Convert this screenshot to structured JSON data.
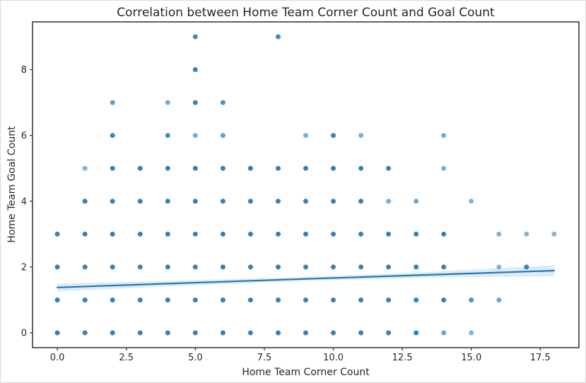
{
  "chart_data": {
    "type": "scatter",
    "title": "Correlation between Home Team Corner Count and Goal Count",
    "xlabel": "Home Team Corner Count",
    "ylabel": "Home Team Goal Count",
    "xlim": [
      -0.9,
      18.9
    ],
    "ylim": [
      -0.45,
      9.45
    ],
    "xtick_values": [
      0,
      2.5,
      5,
      7.5,
      10,
      12.5,
      15,
      17.5
    ],
    "xtick_labels": [
      "0.0",
      "2.5",
      "5.0",
      "7.5",
      "10.0",
      "12.5",
      "15.0",
      "17.5"
    ],
    "ytick_values": [
      0,
      2,
      4,
      6,
      8
    ],
    "ytick_labels": [
      "0",
      "2",
      "4",
      "6",
      "8"
    ],
    "grid": false,
    "legend": "none",
    "point_color": "#1f77b4",
    "point_radius": 3.5,
    "axis_color": "#2e2e2e",
    "text_color": "#262626",
    "points": [
      [
        0,
        0,
        0.92
      ],
      [
        1,
        0,
        0.92
      ],
      [
        2,
        0,
        0.92
      ],
      [
        3,
        0,
        0.92
      ],
      [
        4,
        0,
        0.92
      ],
      [
        5,
        0,
        0.92
      ],
      [
        6,
        0,
        0.92
      ],
      [
        7,
        0,
        0.92
      ],
      [
        8,
        0,
        0.92
      ],
      [
        9,
        0,
        0.92
      ],
      [
        10,
        0,
        0.92
      ],
      [
        11,
        0,
        0.92
      ],
      [
        12,
        0,
        0.92
      ],
      [
        13,
        0,
        0.92
      ],
      [
        14,
        0,
        0.65
      ],
      [
        15,
        0,
        0.55
      ],
      [
        0,
        1,
        0.92
      ],
      [
        1,
        1,
        0.92
      ],
      [
        2,
        1,
        0.92
      ],
      [
        3,
        1,
        0.92
      ],
      [
        4,
        1,
        0.92
      ],
      [
        5,
        1,
        0.92
      ],
      [
        6,
        1,
        0.92
      ],
      [
        7,
        1,
        0.92
      ],
      [
        8,
        1,
        0.92
      ],
      [
        9,
        1,
        0.92
      ],
      [
        10,
        1,
        0.92
      ],
      [
        11,
        1,
        0.92
      ],
      [
        12,
        1,
        0.92
      ],
      [
        13,
        1,
        0.92
      ],
      [
        14,
        1,
        0.92
      ],
      [
        15,
        1,
        0.8
      ],
      [
        16,
        1,
        0.65
      ],
      [
        0,
        2,
        0.92
      ],
      [
        1,
        2,
        0.92
      ],
      [
        2,
        2,
        0.92
      ],
      [
        3,
        2,
        0.92
      ],
      [
        4,
        2,
        0.92
      ],
      [
        5,
        2,
        0.92
      ],
      [
        6,
        2,
        0.92
      ],
      [
        7,
        2,
        0.92
      ],
      [
        8,
        2,
        0.92
      ],
      [
        9,
        2,
        0.92
      ],
      [
        10,
        2,
        0.92
      ],
      [
        11,
        2,
        0.92
      ],
      [
        12,
        2,
        0.92
      ],
      [
        13,
        2,
        0.92
      ],
      [
        14,
        2,
        0.92
      ],
      [
        16,
        2,
        0.55
      ],
      [
        17,
        2,
        0.9
      ],
      [
        0,
        3,
        0.92
      ],
      [
        1,
        3,
        0.92
      ],
      [
        2,
        3,
        0.92
      ],
      [
        3,
        3,
        0.92
      ],
      [
        4,
        3,
        0.92
      ],
      [
        5,
        3,
        0.92
      ],
      [
        6,
        3,
        0.92
      ],
      [
        7,
        3,
        0.92
      ],
      [
        8,
        3,
        0.92
      ],
      [
        9,
        3,
        0.92
      ],
      [
        10,
        3,
        0.92
      ],
      [
        11,
        3,
        0.92
      ],
      [
        12,
        3,
        0.92
      ],
      [
        13,
        3,
        0.92
      ],
      [
        14,
        3,
        0.92
      ],
      [
        16,
        3,
        0.55
      ],
      [
        17,
        3,
        0.55
      ],
      [
        18,
        3,
        0.55
      ],
      [
        1,
        4,
        0.92
      ],
      [
        2,
        4,
        0.92
      ],
      [
        3,
        4,
        0.92
      ],
      [
        4,
        4,
        0.92
      ],
      [
        5,
        4,
        0.92
      ],
      [
        6,
        4,
        0.92
      ],
      [
        7,
        4,
        0.92
      ],
      [
        8,
        4,
        0.92
      ],
      [
        9,
        4,
        0.92
      ],
      [
        10,
        4,
        0.92
      ],
      [
        11,
        4,
        0.92
      ],
      [
        12,
        4,
        0.6
      ],
      [
        13,
        4,
        0.65
      ],
      [
        15,
        4,
        0.55
      ],
      [
        1,
        5,
        0.55
      ],
      [
        2,
        5,
        0.92
      ],
      [
        3,
        5,
        0.92
      ],
      [
        4,
        5,
        0.92
      ],
      [
        5,
        5,
        0.92
      ],
      [
        6,
        5,
        0.92
      ],
      [
        7,
        5,
        0.92
      ],
      [
        8,
        5,
        0.92
      ],
      [
        9,
        5,
        0.92
      ],
      [
        10,
        5,
        0.92
      ],
      [
        11,
        5,
        0.92
      ],
      [
        12,
        5,
        0.9
      ],
      [
        14,
        5,
        0.6
      ],
      [
        2,
        6,
        0.9
      ],
      [
        4,
        6,
        0.85
      ],
      [
        5,
        6,
        0.6
      ],
      [
        6,
        6,
        0.7
      ],
      [
        9,
        6,
        0.6
      ],
      [
        10,
        6,
        0.9
      ],
      [
        11,
        6,
        0.6
      ],
      [
        14,
        6,
        0.6
      ],
      [
        2,
        7,
        0.7
      ],
      [
        4,
        7,
        0.6
      ],
      [
        5,
        7,
        0.9
      ],
      [
        6,
        7,
        0.8
      ],
      [
        5,
        8,
        0.9
      ],
      [
        5,
        9,
        0.85
      ],
      [
        8,
        9,
        0.85
      ]
    ],
    "regression": {
      "color": "#1f77b4",
      "line_width": 2.2,
      "band_opacity": 0.15,
      "x": [
        0,
        4.5,
        9,
        13.5,
        18
      ],
      "y": [
        1.38,
        1.51,
        1.64,
        1.765,
        1.89
      ],
      "band_upper": [
        1.5,
        1.59,
        1.7,
        1.85,
        2.06
      ],
      "band_lower": [
        1.26,
        1.43,
        1.58,
        1.68,
        1.72
      ]
    }
  }
}
